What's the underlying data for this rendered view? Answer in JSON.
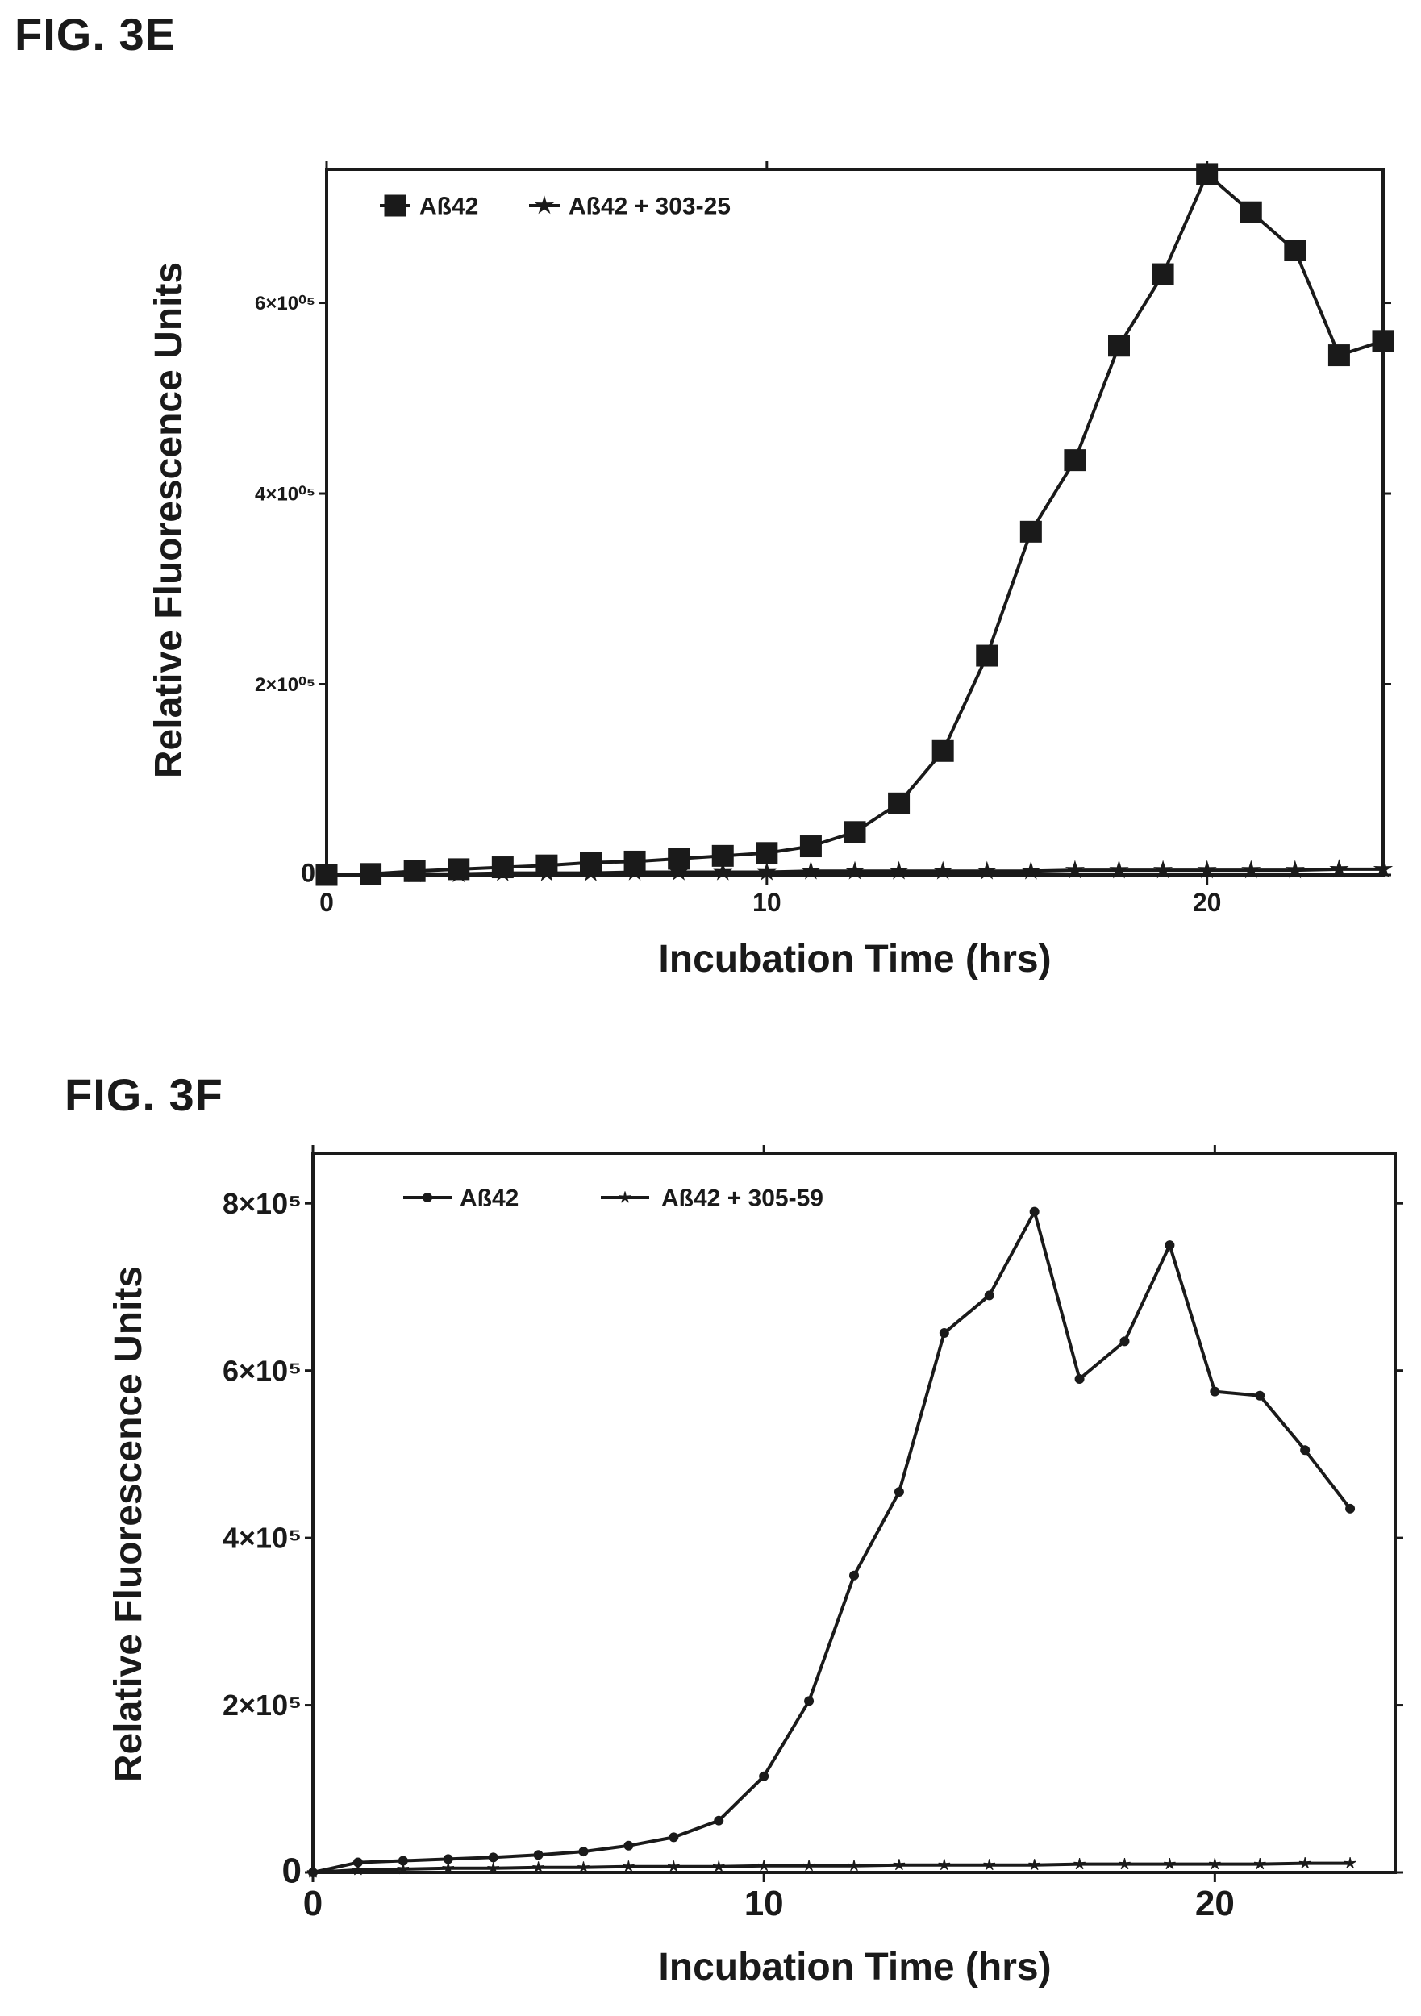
{
  "figures": [
    {
      "label": "FIG. 3E"
    },
    {
      "label": "FIG. 3F"
    }
  ],
  "chart_data": [
    {
      "type": "line",
      "xlabel": "Incubation Time (hrs)",
      "ylabel": "Relative Fluorescence Units",
      "xlim": [
        0,
        24
      ],
      "ylim": [
        0,
        740000
      ],
      "x_ticks": [
        0,
        10,
        20
      ],
      "x_tick_labels": [
        "0",
        "10",
        "20"
      ],
      "y_ticks": [
        0,
        200000,
        400000,
        600000
      ],
      "y_tick_labels": [
        "0",
        "2×10⁰⁵",
        "4×10⁰⁵",
        "6×10⁰⁵"
      ],
      "legend_position": "top-left",
      "grid": false,
      "x": [
        0,
        1,
        2,
        3,
        4,
        5,
        6,
        7,
        8,
        9,
        10,
        11,
        12,
        13,
        14,
        15,
        16,
        17,
        18,
        19,
        20,
        21,
        22,
        23,
        24
      ],
      "series": [
        {
          "name": "Aß42",
          "marker": "square",
          "values": [
            0,
            1000,
            4000,
            6000,
            8000,
            10000,
            13000,
            14000,
            17000,
            20000,
            23000,
            30000,
            45000,
            75000,
            130000,
            230000,
            360000,
            435000,
            555000,
            630000,
            735000,
            695000,
            655000,
            545000,
            560000
          ]
        },
        {
          "name": "Aß42 + 303-25",
          "marker": "star",
          "values": [
            0,
            0,
            1000,
            1000,
            2000,
            2000,
            2000,
            3000,
            3000,
            3000,
            3000,
            4000,
            4000,
            4000,
            4000,
            4000,
            4000,
            5000,
            5000,
            5000,
            5000,
            5000,
            5000,
            6000,
            6000
          ]
        }
      ]
    },
    {
      "type": "line",
      "xlabel": "Incubation Time (hrs)",
      "ylabel": "Relative Fluorescence Units",
      "xlim": [
        0,
        24
      ],
      "ylim": [
        0,
        860000
      ],
      "x_ticks": [
        0,
        10,
        20
      ],
      "x_tick_labels": [
        "0",
        "10",
        "20"
      ],
      "y_ticks": [
        0,
        200000,
        400000,
        600000,
        800000
      ],
      "y_tick_labels": [
        "0",
        "2×10⁵",
        "4×10⁵",
        "6×10⁵",
        "8×10⁵"
      ],
      "legend_position": "top-left",
      "grid": false,
      "x": [
        0,
        1,
        2,
        3,
        4,
        5,
        6,
        7,
        8,
        9,
        10,
        11,
        12,
        13,
        14,
        15,
        16,
        17,
        18,
        19,
        20,
        21,
        22,
        23
      ],
      "series": [
        {
          "name": "Aß42",
          "marker": "dot",
          "values": [
            0,
            12000,
            14000,
            16000,
            18000,
            21000,
            25000,
            32000,
            42000,
            62000,
            115000,
            205000,
            355000,
            455000,
            645000,
            690000,
            790000,
            590000,
            635000,
            750000,
            575000,
            570000,
            505000,
            435000
          ]
        },
        {
          "name": "Aß42 + 305-59",
          "marker": "star",
          "values": [
            0,
            3000,
            4000,
            5000,
            5000,
            6000,
            6000,
            7000,
            7000,
            7000,
            8000,
            8000,
            8000,
            9000,
            9000,
            9000,
            9000,
            10000,
            10000,
            10000,
            10000,
            10000,
            11000,
            11000
          ]
        }
      ]
    }
  ]
}
